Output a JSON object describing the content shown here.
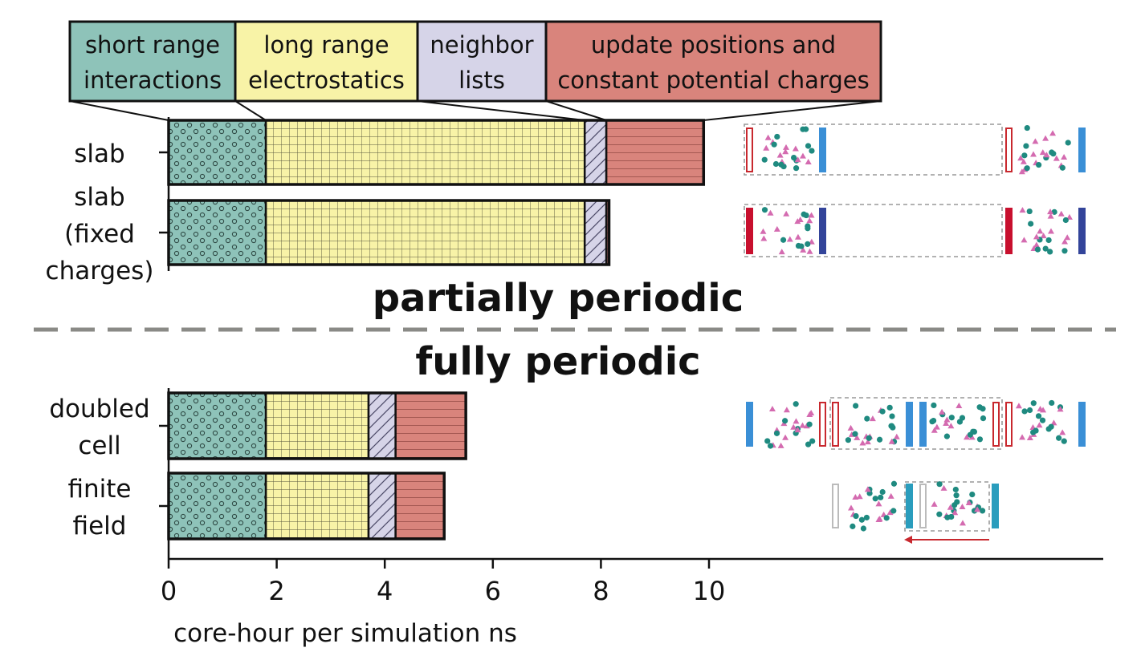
{
  "chart_data": {
    "type": "bar",
    "orientation": "horizontal",
    "stacked": true,
    "xlabel": "core-hour per simulation ns",
    "xlim": [
      0,
      10
    ],
    "xticks": [
      "0",
      "2",
      "4",
      "6",
      "8",
      "10"
    ],
    "xtick_values": [
      0,
      2,
      4,
      6,
      8,
      10
    ],
    "grid": false,
    "legend_position": "top",
    "legend": [
      [
        "short range",
        "interactions"
      ],
      [
        "long range",
        "electrostatics"
      ],
      [
        "neighbor",
        "lists"
      ],
      [
        "update positions and",
        "constant potential charges"
      ]
    ],
    "components": [
      {
        "key": "short",
        "color": "#8ec3b9",
        "pattern": "dots"
      },
      {
        "key": "long",
        "color": "#f8f3a7",
        "pattern": "grid"
      },
      {
        "key": "neighbor",
        "color": "#d6d4e8",
        "pattern": "hatch"
      },
      {
        "key": "update",
        "color": "#d9847c",
        "pattern": "hlines"
      }
    ],
    "groups": [
      {
        "title": "partially periodic",
        "categories": [
          {
            "label": [
              "slab"
            ],
            "values": [
              1.8,
              5.9,
              0.4,
              1.8
            ]
          },
          {
            "label": [
              "slab",
              "(fixed",
              "charges)"
            ],
            "values": [
              1.8,
              5.9,
              0.4,
              0.05
            ]
          }
        ]
      },
      {
        "title": "fully periodic",
        "categories": [
          {
            "label": [
              "doubled",
              "cell"
            ],
            "values": [
              1.8,
              1.9,
              0.5,
              1.3
            ]
          },
          {
            "label": [
              "finite",
              "field"
            ],
            "values": [
              1.8,
              1.9,
              0.5,
              0.9
            ]
          }
        ]
      }
    ]
  }
}
